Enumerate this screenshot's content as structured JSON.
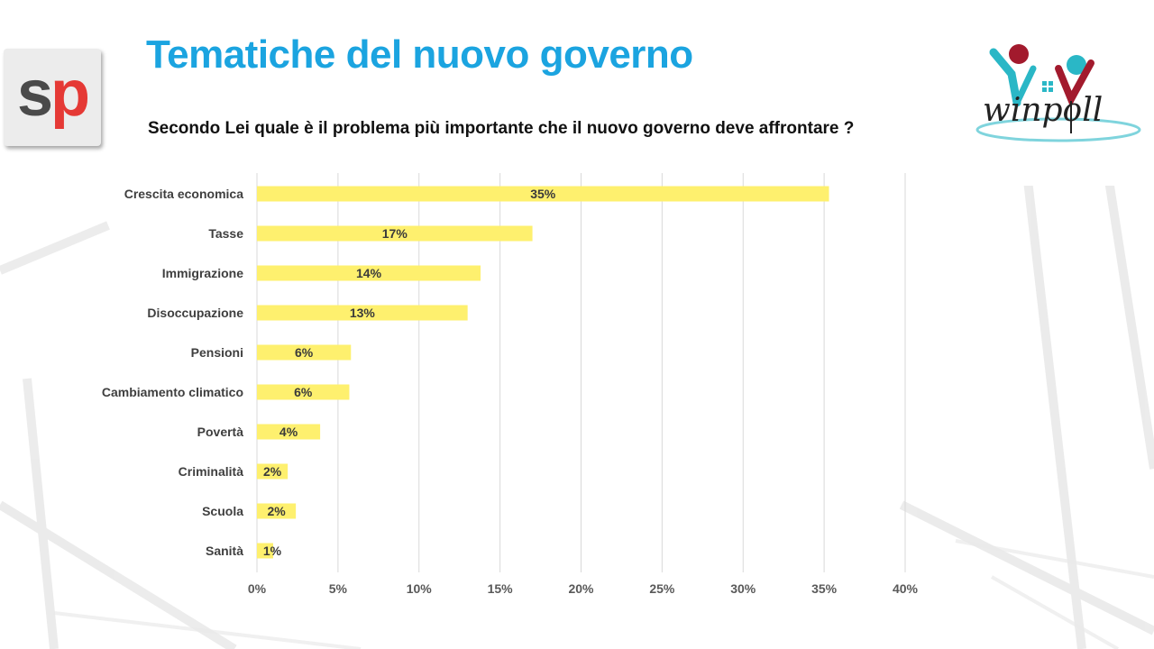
{
  "header": {
    "title": "Tematiche del nuovo governo",
    "subtitle": "Secondo Lei quale è il problema più importante che il nuovo governo deve affrontare ?"
  },
  "logos": {
    "left_text": {
      "s": "s",
      "p": "p"
    },
    "right_text": "winpoll"
  },
  "colors": {
    "title": "#1ba4e0",
    "bar": "#fef06e",
    "logo_red": "#a21a2d",
    "logo_teal": "#2ab7c6"
  },
  "chart_data": {
    "type": "bar",
    "orientation": "horizontal",
    "categories": [
      "Crescita economica",
      "Tasse",
      "Immigrazione",
      "Disoccupazione",
      "Pensioni",
      "Cambiamento climatico",
      "Povertà",
      "Criminalità",
      "Scuola",
      "Sanità"
    ],
    "values": [
      35.3,
      17,
      13.8,
      13,
      5.8,
      5.7,
      3.9,
      1.9,
      2.4,
      1
    ],
    "labels": [
      "35%",
      "17%",
      "14%",
      "13%",
      "6%",
      "6%",
      "4%",
      "2%",
      "2%",
      "1%"
    ],
    "xlim": [
      0,
      40
    ],
    "xticks": [
      "0%",
      "5%",
      "10%",
      "15%",
      "20%",
      "25%",
      "30%",
      "35%",
      "40%"
    ],
    "grid": true
  }
}
